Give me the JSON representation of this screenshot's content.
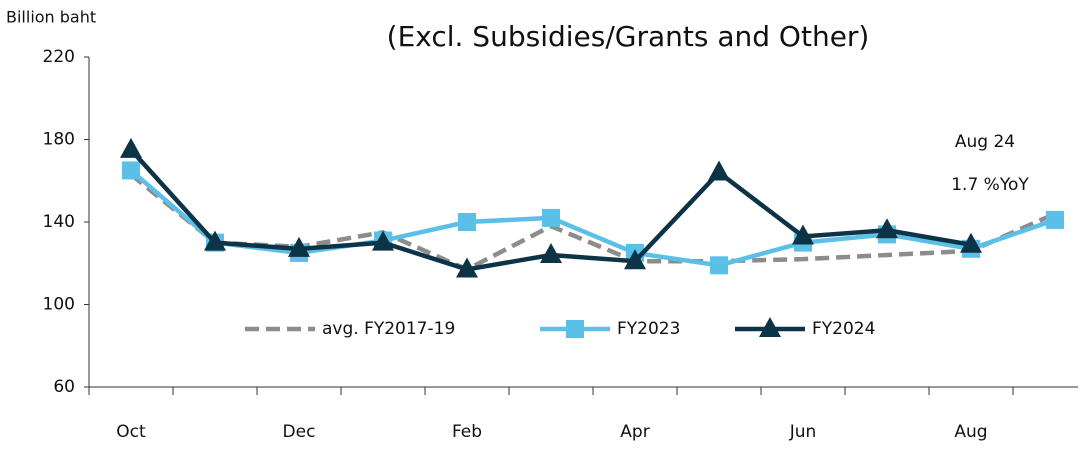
{
  "chart_data": {
    "type": "line",
    "title": "(Excl. Subsidies/Grants and Other)",
    "y_label": "Billion baht",
    "annotations": [
      "Aug 24",
      "1.7 %YoY"
    ],
    "categories": [
      "Oct",
      null,
      "Dec",
      null,
      "Feb",
      null,
      "Apr",
      null,
      "Jun",
      null,
      "Aug",
      null
    ],
    "series": [
      {
        "name": "avg. FY2017-19",
        "color": "#8c8c8c",
        "dash": true,
        "marker": "none",
        "values": [
          163,
          130,
          128,
          135,
          117,
          138,
          121,
          121,
          122,
          124,
          126,
          144
        ]
      },
      {
        "name": "FY2023",
        "color": "#5bc0e8",
        "dash": false,
        "marker": "square",
        "values": [
          165,
          130,
          125,
          131,
          140,
          142,
          125,
          119,
          130,
          134,
          127,
          141
        ]
      },
      {
        "name": "FY2024",
        "color": "#0d3347",
        "dash": false,
        "marker": "triangle",
        "values": [
          175,
          130,
          127,
          130,
          117,
          124,
          121,
          164,
          133,
          136,
          129,
          null
        ]
      }
    ],
    "ylim": [
      60,
      220
    ],
    "yticks": [
      60,
      100,
      140,
      180,
      220
    ],
    "grid": false
  }
}
